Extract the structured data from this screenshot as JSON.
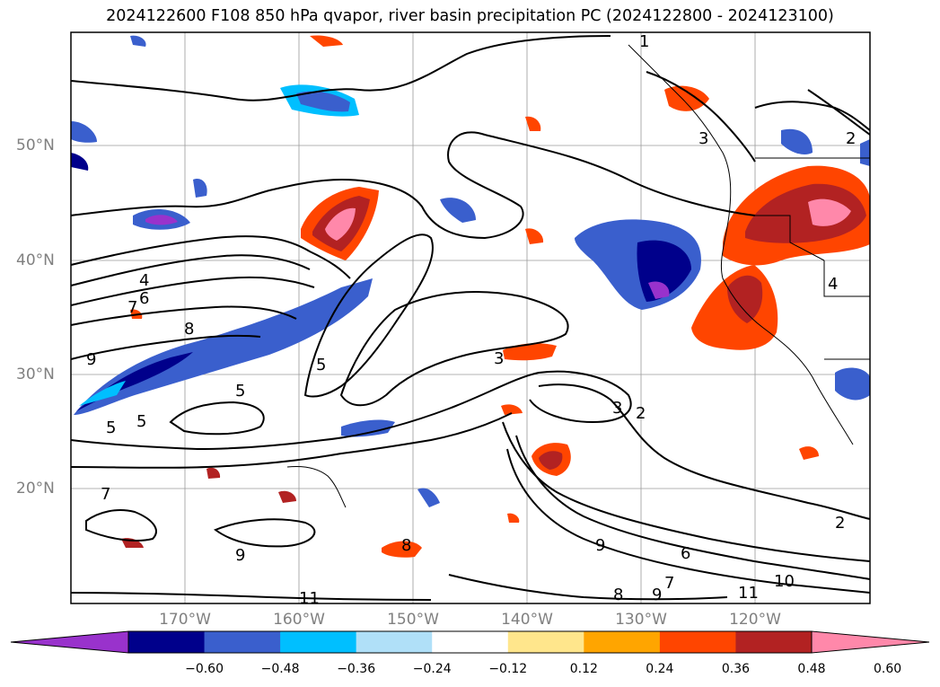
{
  "title": "2024122600 F108 850 hPa qvapor, river basin precipitation PC (2024122800 - 2024123100)",
  "lat_labels": [
    "50°N",
    "40°N",
    "30°N",
    "20°N"
  ],
  "lon_labels": [
    "170°W",
    "160°W",
    "150°W",
    "140°W",
    "130°W",
    "120°W"
  ],
  "contour_labels": [
    "1",
    "2",
    "3",
    "4",
    "5",
    "6",
    "7",
    "8",
    "9",
    "10",
    "11"
  ],
  "colorbar": {
    "ticks": [
      "−0.60",
      "−0.48",
      "−0.36",
      "−0.24",
      "−0.12",
      "0.12",
      "0.24",
      "0.36",
      "0.48",
      "0.60"
    ],
    "colors": [
      "#9932cc",
      "#00008b",
      "#3a5fcd",
      "#00bfff",
      "#b0e0f8",
      "#ffffff",
      "#ffe68c",
      "#ffa500",
      "#ff4500",
      "#b22222",
      "#ff88aa"
    ],
    "under_color": "#9932cc",
    "over_color": "#ff88aa"
  }
}
